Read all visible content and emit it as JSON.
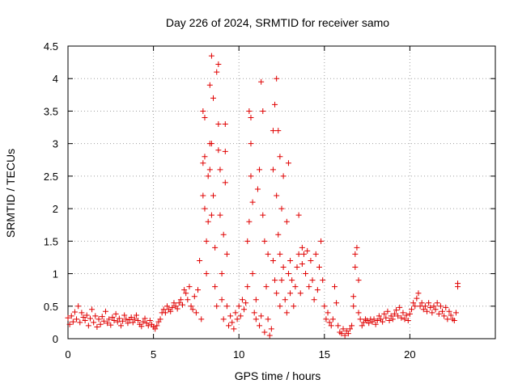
{
  "chart_data": {
    "type": "scatter",
    "title": "Day 226 of 2024, SRMTID for receiver samo",
    "xlabel": "GPS time / hours",
    "ylabel": "SRMTID / TECUs",
    "xlim": [
      0,
      25
    ],
    "ylim": [
      0,
      4.5
    ],
    "xticks": [
      0,
      5,
      10,
      15,
      20
    ],
    "xtick_labels": [
      "0",
      "5",
      "10",
      "15",
      "20"
    ],
    "yticks": [
      0,
      0.5,
      1,
      1.5,
      2,
      2.5,
      3,
      3.5,
      4,
      4.5
    ],
    "ytick_labels": [
      "0",
      "0.5",
      "1",
      "1.5",
      "2",
      "2.5",
      "3",
      "3.5",
      "4",
      "4.5"
    ],
    "grid": true,
    "marker": "+",
    "color": "#e00000",
    "series": [
      {
        "name": "samo",
        "points": [
          [
            0.0,
            0.32
          ],
          [
            0.1,
            0.22
          ],
          [
            0.2,
            0.35
          ],
          [
            0.3,
            0.26
          ],
          [
            0.4,
            0.41
          ],
          [
            0.5,
            0.3
          ],
          [
            0.6,
            0.5
          ],
          [
            0.7,
            0.25
          ],
          [
            0.8,
            0.4
          ],
          [
            0.9,
            0.33
          ],
          [
            1.0,
            0.28
          ],
          [
            1.1,
            0.36
          ],
          [
            1.2,
            0.2
          ],
          [
            1.3,
            0.31
          ],
          [
            1.4,
            0.45
          ],
          [
            1.5,
            0.25
          ],
          [
            1.6,
            0.35
          ],
          [
            1.7,
            0.18
          ],
          [
            1.8,
            0.3
          ],
          [
            1.9,
            0.22
          ],
          [
            2.0,
            0.34
          ],
          [
            2.1,
            0.27
          ],
          [
            2.2,
            0.42
          ],
          [
            2.3,
            0.24
          ],
          [
            2.4,
            0.3
          ],
          [
            2.5,
            0.21
          ],
          [
            2.6,
            0.33
          ],
          [
            2.7,
            0.28
          ],
          [
            2.8,
            0.38
          ],
          [
            2.9,
            0.26
          ],
          [
            3.0,
            0.31
          ],
          [
            3.1,
            0.2
          ],
          [
            3.2,
            0.27
          ],
          [
            3.3,
            0.36
          ],
          [
            3.4,
            0.3
          ],
          [
            3.5,
            0.24
          ],
          [
            3.6,
            0.29
          ],
          [
            3.7,
            0.33
          ],
          [
            3.8,
            0.25
          ],
          [
            3.9,
            0.3
          ],
          [
            4.0,
            0.36
          ],
          [
            4.1,
            0.28
          ],
          [
            4.2,
            0.22
          ],
          [
            4.3,
            0.19
          ],
          [
            4.4,
            0.26
          ],
          [
            4.5,
            0.31
          ],
          [
            4.6,
            0.24
          ],
          [
            4.7,
            0.2
          ],
          [
            4.8,
            0.28
          ],
          [
            4.9,
            0.22
          ],
          [
            5.0,
            0.18
          ],
          [
            5.1,
            0.15
          ],
          [
            5.2,
            0.2
          ],
          [
            5.3,
            0.26
          ],
          [
            5.4,
            0.3
          ],
          [
            5.5,
            0.4
          ],
          [
            5.6,
            0.45
          ],
          [
            5.7,
            0.4
          ],
          [
            5.8,
            0.5
          ],
          [
            5.9,
            0.45
          ],
          [
            6.0,
            0.42
          ],
          [
            6.1,
            0.48
          ],
          [
            6.2,
            0.55
          ],
          [
            6.3,
            0.5
          ],
          [
            6.4,
            0.46
          ],
          [
            6.5,
            0.55
          ],
          [
            6.6,
            0.6
          ],
          [
            6.7,
            0.52
          ],
          [
            6.8,
            0.75
          ],
          [
            6.9,
            0.7
          ],
          [
            7.0,
            0.6
          ],
          [
            7.1,
            0.8
          ],
          [
            7.2,
            0.5
          ],
          [
            7.3,
            0.45
          ],
          [
            7.4,
            0.65
          ],
          [
            7.5,
            0.4
          ],
          [
            7.6,
            0.75
          ],
          [
            7.7,
            1.2
          ],
          [
            7.8,
            0.3
          ],
          [
            7.9,
            2.2
          ],
          [
            7.9,
            2.7
          ],
          [
            7.9,
            3.5
          ],
          [
            8.0,
            2.0
          ],
          [
            8.0,
            2.8
          ],
          [
            8.0,
            3.4
          ],
          [
            8.1,
            1.0
          ],
          [
            8.1,
            1.5
          ],
          [
            8.2,
            1.8
          ],
          [
            8.2,
            2.5
          ],
          [
            8.3,
            3.0
          ],
          [
            8.3,
            3.9
          ],
          [
            8.3,
            2.6
          ],
          [
            8.4,
            4.35
          ],
          [
            8.4,
            3.0
          ],
          [
            8.4,
            1.9
          ],
          [
            8.5,
            2.2
          ],
          [
            8.5,
            3.7
          ],
          [
            8.6,
            1.4
          ],
          [
            8.6,
            0.8
          ],
          [
            8.7,
            0.5
          ],
          [
            8.7,
            4.1
          ],
          [
            8.8,
            4.22
          ],
          [
            8.8,
            3.3
          ],
          [
            8.8,
            2.9
          ],
          [
            8.9,
            1.9
          ],
          [
            8.9,
            2.6
          ],
          [
            9.0,
            1.0
          ],
          [
            9.0,
            0.6
          ],
          [
            9.1,
            1.6
          ],
          [
            9.1,
            0.3
          ],
          [
            9.2,
            3.3
          ],
          [
            9.2,
            2.4
          ],
          [
            9.2,
            2.88
          ],
          [
            9.3,
            1.3
          ],
          [
            9.3,
            0.5
          ],
          [
            9.4,
            0.2
          ],
          [
            9.5,
            0.35
          ],
          [
            9.6,
            0.25
          ],
          [
            9.7,
            0.15
          ],
          [
            9.8,
            0.4
          ],
          [
            9.9,
            0.3
          ],
          [
            10.0,
            0.5
          ],
          [
            10.1,
            0.35
          ],
          [
            10.2,
            0.6
          ],
          [
            10.3,
            0.45
          ],
          [
            10.4,
            0.55
          ],
          [
            10.5,
            1.5
          ],
          [
            10.5,
            0.8
          ],
          [
            10.6,
            1.8
          ],
          [
            10.6,
            3.5
          ],
          [
            10.7,
            3.4
          ],
          [
            10.7,
            3.0
          ],
          [
            10.7,
            2.5
          ],
          [
            10.8,
            2.1
          ],
          [
            10.8,
            1.0
          ],
          [
            10.9,
            0.4
          ],
          [
            11.0,
            0.3
          ],
          [
            11.0,
            0.6
          ],
          [
            11.1,
            2.3
          ],
          [
            11.2,
            2.6
          ],
          [
            11.2,
            0.2
          ],
          [
            11.3,
            3.95
          ],
          [
            11.3,
            0.35
          ],
          [
            11.4,
            3.5
          ],
          [
            11.4,
            1.9
          ],
          [
            11.5,
            1.5
          ],
          [
            11.5,
            0.1
          ],
          [
            11.6,
            0.8
          ],
          [
            11.7,
            0.3
          ],
          [
            11.7,
            1.3
          ],
          [
            11.8,
            0.05
          ],
          [
            11.9,
            0.15
          ],
          [
            12.0,
            3.2
          ],
          [
            12.0,
            2.6
          ],
          [
            12.0,
            1.2
          ],
          [
            12.1,
            3.6
          ],
          [
            12.1,
            0.9
          ],
          [
            12.2,
            4.0
          ],
          [
            12.2,
            2.2
          ],
          [
            12.2,
            0.7
          ],
          [
            12.3,
            3.2
          ],
          [
            12.3,
            1.6
          ],
          [
            12.4,
            2.8
          ],
          [
            12.4,
            1.3
          ],
          [
            12.4,
            0.5
          ],
          [
            12.5,
            2.0
          ],
          [
            12.5,
            0.9
          ],
          [
            12.6,
            2.5
          ],
          [
            12.6,
            1.1
          ],
          [
            12.7,
            0.6
          ],
          [
            12.8,
            1.8
          ],
          [
            12.8,
            0.4
          ],
          [
            12.9,
            2.7
          ],
          [
            12.9,
            1.0
          ],
          [
            13.0,
            1.2
          ],
          [
            13.0,
            0.7
          ],
          [
            13.1,
            0.9
          ],
          [
            13.2,
            0.5
          ],
          [
            13.3,
            0.8
          ],
          [
            13.4,
            1.1
          ],
          [
            13.5,
            1.9
          ],
          [
            13.5,
            1.3
          ],
          [
            13.6,
            0.7
          ],
          [
            13.7,
            1.4
          ],
          [
            13.7,
            1.15
          ],
          [
            13.8,
            1.3
          ],
          [
            13.9,
            1.0
          ],
          [
            14.0,
            1.35
          ],
          [
            14.1,
            0.8
          ],
          [
            14.2,
            1.2
          ],
          [
            14.3,
            0.9
          ],
          [
            14.4,
            0.6
          ],
          [
            14.5,
            1.3
          ],
          [
            14.6,
            0.75
          ],
          [
            14.7,
            1.1
          ],
          [
            14.8,
            1.5
          ],
          [
            14.9,
            0.9
          ],
          [
            15.0,
            0.5
          ],
          [
            15.1,
            0.3
          ],
          [
            15.2,
            0.4
          ],
          [
            15.3,
            0.25
          ],
          [
            15.4,
            0.2
          ],
          [
            15.5,
            0.3
          ],
          [
            15.6,
            0.8
          ],
          [
            15.7,
            0.55
          ],
          [
            15.8,
            0.2
          ],
          [
            15.9,
            0.1
          ],
          [
            16.0,
            0.08
          ],
          [
            16.1,
            0.15
          ],
          [
            16.2,
            0.05
          ],
          [
            16.3,
            0.12
          ],
          [
            16.4,
            0.08
          ],
          [
            16.5,
            0.15
          ],
          [
            16.6,
            0.2
          ],
          [
            16.7,
            0.5
          ],
          [
            16.7,
            0.65
          ],
          [
            16.8,
            1.3
          ],
          [
            16.8,
            1.1
          ],
          [
            16.9,
            1.4
          ],
          [
            17.0,
            0.9
          ],
          [
            17.0,
            0.4
          ],
          [
            17.1,
            0.3
          ],
          [
            17.2,
            0.2
          ],
          [
            17.3,
            0.25
          ],
          [
            17.4,
            0.3
          ],
          [
            17.5,
            0.28
          ],
          [
            17.6,
            0.24
          ],
          [
            17.7,
            0.3
          ],
          [
            17.8,
            0.26
          ],
          [
            17.9,
            0.3
          ],
          [
            18.0,
            0.22
          ],
          [
            18.1,
            0.28
          ],
          [
            18.2,
            0.35
          ],
          [
            18.3,
            0.3
          ],
          [
            18.4,
            0.26
          ],
          [
            18.5,
            0.38
          ],
          [
            18.6,
            0.32
          ],
          [
            18.7,
            0.42
          ],
          [
            18.8,
            0.28
          ],
          [
            18.9,
            0.35
          ],
          [
            19.0,
            0.3
          ],
          [
            19.1,
            0.38
          ],
          [
            19.2,
            0.44
          ],
          [
            19.3,
            0.35
          ],
          [
            19.4,
            0.48
          ],
          [
            19.5,
            0.32
          ],
          [
            19.6,
            0.4
          ],
          [
            19.7,
            0.3
          ],
          [
            19.8,
            0.36
          ],
          [
            19.9,
            0.28
          ],
          [
            20.0,
            0.38
          ],
          [
            20.1,
            0.45
          ],
          [
            20.2,
            0.55
          ],
          [
            20.3,
            0.5
          ],
          [
            20.4,
            0.62
          ],
          [
            20.5,
            0.7
          ],
          [
            20.6,
            0.5
          ],
          [
            20.7,
            0.55
          ],
          [
            20.8,
            0.45
          ],
          [
            20.9,
            0.5
          ],
          [
            21.0,
            0.42
          ],
          [
            21.1,
            0.55
          ],
          [
            21.2,
            0.48
          ],
          [
            21.3,
            0.4
          ],
          [
            21.4,
            0.5
          ],
          [
            21.5,
            0.45
          ],
          [
            21.6,
            0.55
          ],
          [
            21.7,
            0.38
          ],
          [
            21.8,
            0.5
          ],
          [
            21.9,
            0.42
          ],
          [
            22.0,
            0.35
          ],
          [
            22.1,
            0.48
          ],
          [
            22.2,
            0.3
          ],
          [
            22.3,
            0.42
          ],
          [
            22.4,
            0.36
          ],
          [
            22.5,
            0.3
          ],
          [
            22.6,
            0.28
          ],
          [
            22.7,
            0.4
          ],
          [
            22.8,
            0.8
          ],
          [
            22.8,
            0.85
          ]
        ]
      }
    ]
  }
}
